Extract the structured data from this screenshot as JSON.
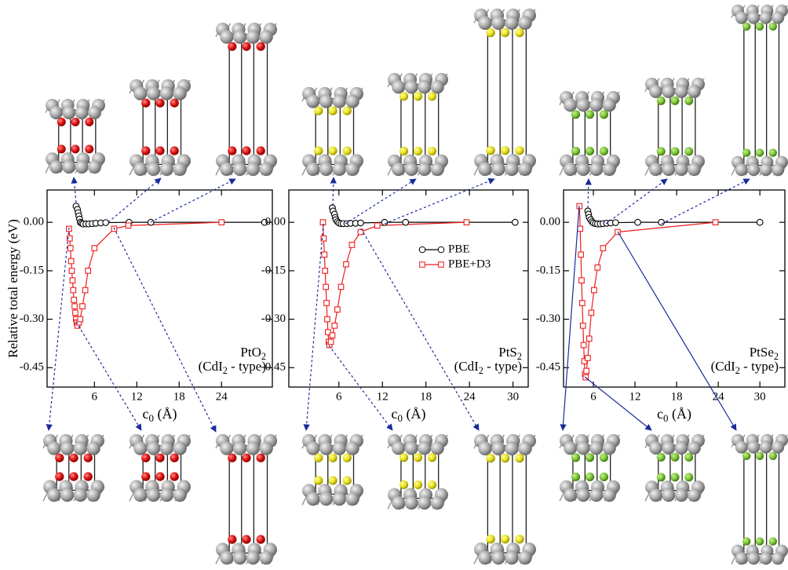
{
  "chart_data": [
    {
      "type": "line",
      "y_label": "Relative total energy (eV)",
      "x_label": "c0 (Å)",
      "annotation": [
        "PtO2",
        "(CdI2 - type)"
      ],
      "xlim": [
        -0.7,
        31.2
      ],
      "xticks": [
        6,
        12,
        18,
        24
      ],
      "ylim": [
        -0.51,
        0.1
      ],
      "yticks": [
        {
          "value": 0,
          "label": "0.00"
        },
        -0.15,
        {
          "value": -0.3,
          "label": "-0.30"
        },
        -0.45
      ],
      "series": [
        {
          "color": "#000000",
          "marker": "circle",
          "x": [
            3.4,
            3.6,
            3.7,
            3.8,
            3.9,
            4.0,
            4.2,
            4.4,
            4.8,
            5.2,
            5.7,
            6.2,
            6.9,
            7.6,
            10.9,
            14.0,
            30.1
          ],
          "values": [
            0.05,
            0.04,
            0.03,
            0.02,
            0.01,
            0.0,
            -0.003,
            -0.005,
            -0.005,
            -0.005,
            -0.004,
            -0.003,
            -0.002,
            -0.001,
            0.0,
            0.0,
            0.0
          ]
        },
        {
          "color": "#ee1c1c",
          "marker": "square",
          "x": [
            2.4,
            2.5,
            2.6,
            2.7,
            2.8,
            2.9,
            3.0,
            3.1,
            3.2,
            3.3,
            3.4,
            3.5,
            3.6,
            3.8,
            4.0,
            4.3,
            4.7,
            5.1,
            6.0,
            8.8,
            10.8,
            24.0
          ],
          "values": [
            -0.02,
            -0.05,
            -0.08,
            -0.12,
            -0.15,
            -0.18,
            -0.21,
            -0.24,
            -0.26,
            -0.28,
            -0.3,
            -0.31,
            -0.32,
            -0.31,
            -0.3,
            -0.26,
            -0.21,
            -0.15,
            -0.08,
            -0.02,
            -0.01,
            0.0
          ]
        }
      ]
    },
    {
      "type": "line",
      "x_label": "c0 (Å)",
      "annotation": [
        "PtS2",
        "(CdI2 - type)"
      ],
      "xlim": [
        -0.9,
        32.1
      ],
      "xticks": [
        6,
        12,
        18,
        24,
        30
      ],
      "ylim": [
        -0.51,
        0.1
      ],
      "yticks": [
        {
          "value": 0,
          "label": "0.00"
        },
        -0.15,
        {
          "value": -0.3,
          "label": "-0.30"
        },
        -0.45
      ],
      "legend": "upper right",
      "series": [
        {
          "name": "PBE",
          "color": "#000000",
          "marker": "circle",
          "x": [
            5.1,
            5.2,
            5.4,
            5.5,
            5.6,
            5.8,
            6.0,
            6.3,
            6.6,
            7.1,
            7.6,
            8.3,
            9.0,
            12.3,
            15.2,
            30.3
          ],
          "values": [
            0.045,
            0.035,
            0.025,
            0.015,
            0.008,
            0.002,
            -0.002,
            -0.004,
            -0.004,
            -0.004,
            -0.003,
            -0.003,
            -0.002,
            0.0,
            0.0,
            0.0
          ]
        },
        {
          "name": "PBE+D3",
          "color": "#ee1c1c",
          "marker": "square",
          "x": [
            3.8,
            3.9,
            4.0,
            4.1,
            4.2,
            4.3,
            4.4,
            4.5,
            4.6,
            4.7,
            4.9,
            5.1,
            5.4,
            5.8,
            6.3,
            7.0,
            7.8,
            9.0,
            11.3,
            23.6
          ],
          "values": [
            0.0,
            -0.05,
            -0.1,
            -0.15,
            -0.2,
            -0.25,
            -0.3,
            -0.34,
            -0.37,
            -0.38,
            -0.37,
            -0.35,
            -0.32,
            -0.27,
            -0.2,
            -0.13,
            -0.07,
            -0.03,
            -0.01,
            0.0
          ]
        }
      ]
    },
    {
      "type": "line",
      "x_label": "c0 (Å)",
      "annotation": [
        "PtSe2",
        "(CdI2 - type)"
      ],
      "xlim": [
        1.7,
        33.6
      ],
      "xticks": [
        6,
        12,
        18,
        24,
        30
      ],
      "ylim": [
        -0.51,
        0.1
      ],
      "yticks": [
        {
          "value": 0,
          "label": "0.00"
        },
        -0.15,
        {
          "value": -0.3,
          "label": "-0.30"
        },
        -0.45
      ],
      "series": [
        {
          "color": "#000000",
          "marker": "circle",
          "x": [
            5.2,
            5.3,
            5.4,
            5.6,
            5.8,
            6.0,
            6.3,
            6.6,
            7.0,
            7.4,
            7.9,
            8.5,
            9.2,
            12.4,
            15.8,
            30.0
          ],
          "values": [
            0.035,
            0.025,
            0.015,
            0.008,
            0.002,
            -0.002,
            -0.004,
            -0.005,
            -0.005,
            -0.004,
            -0.003,
            -0.002,
            -0.001,
            0.0,
            0.0,
            0.0
          ]
        },
        {
          "color": "#ee1c1c",
          "marker": "square",
          "x": [
            4.0,
            4.1,
            4.2,
            4.3,
            4.4,
            4.5,
            4.6,
            4.7,
            4.8,
            4.9,
            5.0,
            5.2,
            5.4,
            5.7,
            6.1,
            6.6,
            7.4,
            9.5,
            23.6
          ],
          "values": [
            0.05,
            -0.02,
            -0.1,
            -0.18,
            -0.25,
            -0.32,
            -0.38,
            -0.43,
            -0.47,
            -0.48,
            -0.46,
            -0.42,
            -0.36,
            -0.28,
            -0.21,
            -0.14,
            -0.08,
            -0.03,
            0.0
          ]
        }
      ]
    }
  ]
}
